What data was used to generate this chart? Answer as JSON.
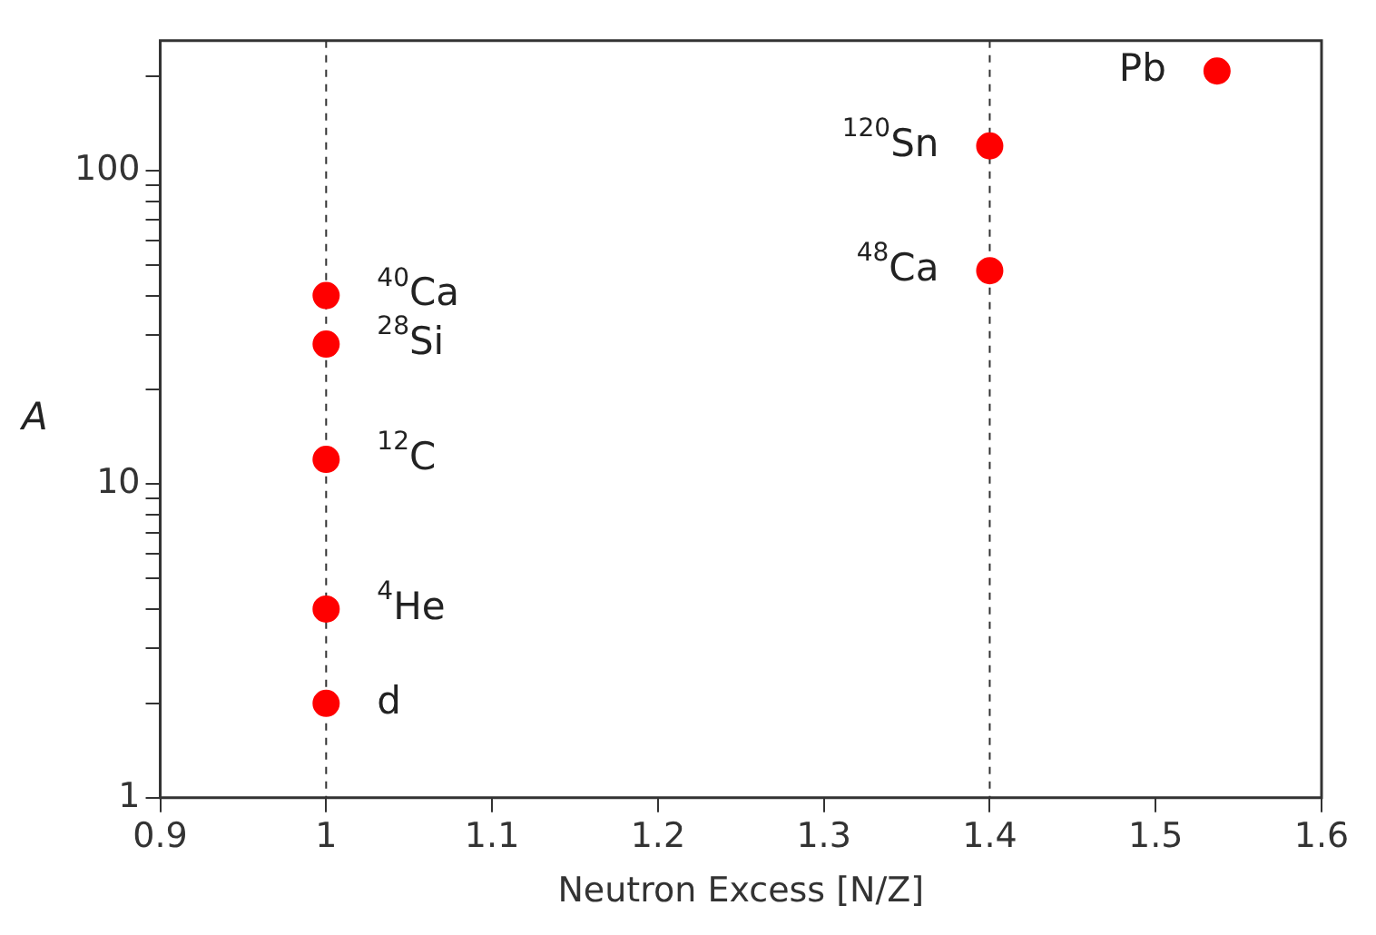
{
  "chart_data": {
    "type": "scatter",
    "xlabel": "Neutron Excess [N/Z]",
    "ylabel": "A",
    "x": [
      1,
      1,
      1,
      1,
      1,
      1.4,
      1.4,
      1.537
    ],
    "series": [
      {
        "color": "#ff0000",
        "values": [
          2,
          4,
          12,
          28,
          40,
          48,
          120,
          208
        ]
      }
    ],
    "marker": "circle",
    "log": "y",
    "grid": false,
    "legend": false,
    "xlim": [
      0.9,
      1.6
    ],
    "xticks": [
      0.9,
      1,
      1.1,
      1.2,
      1.3,
      1.4,
      1.5,
      1.6
    ],
    "ylim": [
      1,
      260
    ],
    "yticks": [
      1,
      {
        "value": 2,
        "label": null
      },
      {
        "value": 3,
        "label": null
      },
      {
        "value": 4,
        "label": null
      },
      {
        "value": 5,
        "label": null
      },
      {
        "value": 6,
        "label": null
      },
      {
        "value": 7,
        "label": null
      },
      {
        "value": 8,
        "label": null
      },
      {
        "value": 9,
        "label": null
      },
      10,
      {
        "value": 20,
        "label": null
      },
      {
        "value": 30,
        "label": null
      },
      {
        "value": 40,
        "label": null
      },
      {
        "value": 50,
        "label": null
      },
      {
        "value": 60,
        "label": null
      },
      {
        "value": 70,
        "label": null
      },
      {
        "value": 80,
        "label": null
      },
      {
        "value": 90,
        "label": null
      },
      100,
      {
        "value": 200,
        "label": null
      }
    ],
    "ref_lines": [
      {
        "axis": "x",
        "value": 1,
        "line_style": "dashed",
        "color": "#333333"
      },
      {
        "axis": "x",
        "value": 1.4,
        "line_style": "dashed",
        "color": "#333333"
      }
    ],
    "annotations": [
      {
        "text": "d",
        "x": 1,
        "y": 2
      },
      {
        "text": "$^{4}$He",
        "x": 1,
        "y": 4
      },
      {
        "text": "$^{12}$C",
        "x": 1,
        "y": 12
      },
      {
        "text": "$^{28}$Si",
        "x": 1,
        "y": 28
      },
      {
        "text": "$^{40}$Ca",
        "x": 1,
        "y": 40
      },
      {
        "text": "$^{48}$Ca",
        "x": 1.4,
        "y": 48
      },
      {
        "text": "$^{120}$Sn",
        "x": 1.4,
        "y": 120
      },
      {
        "text": "Pb",
        "x": 1.537,
        "y": 208
      }
    ]
  }
}
